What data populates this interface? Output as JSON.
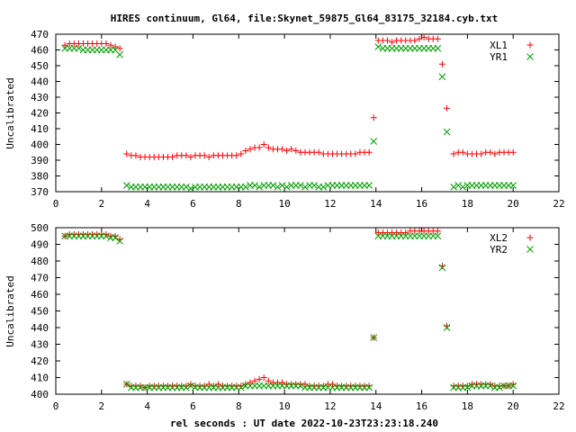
{
  "title": "HIRES continuum, Gl64, file:Skynet_59875_Gl64_83175_32184.cyb.txt",
  "xlabel": "rel seconds : UT date 2022-10-23T23:23:18.240",
  "colors": {
    "red": "#ff0000",
    "green": "#00a000",
    "axis": "#000000"
  },
  "chart_data": [
    {
      "type": "scatter",
      "ylabel": "Uncalibrated",
      "xlim": [
        0,
        22
      ],
      "ylim": [
        370,
        470
      ],
      "xticks": [
        0,
        2,
        4,
        6,
        8,
        10,
        12,
        14,
        16,
        18,
        20,
        22
      ],
      "yticks": [
        370,
        380,
        390,
        400,
        410,
        420,
        430,
        440,
        450,
        460,
        470
      ],
      "legend": "top-right",
      "grid": false,
      "series": [
        {
          "name": "XL1",
          "marker": "plus",
          "color": "#ff0000",
          "x": [
            0.4,
            0.6,
            0.8,
            1.0,
            1.2,
            1.4,
            1.6,
            1.8,
            2.0,
            2.2,
            2.4,
            2.6,
            2.8,
            3.1,
            3.3,
            3.5,
            3.7,
            3.9,
            4.1,
            4.3,
            4.5,
            4.7,
            4.9,
            5.1,
            5.3,
            5.5,
            5.7,
            5.9,
            6.1,
            6.3,
            6.5,
            6.7,
            6.9,
            7.1,
            7.3,
            7.5,
            7.7,
            7.9,
            8.1,
            8.3,
            8.5,
            8.7,
            8.9,
            9.1,
            9.3,
            9.5,
            9.7,
            9.9,
            10.1,
            10.3,
            10.5,
            10.7,
            10.9,
            11.1,
            11.3,
            11.5,
            11.7,
            11.9,
            12.1,
            12.3,
            12.5,
            12.7,
            12.9,
            13.1,
            13.3,
            13.5,
            13.7,
            13.9,
            14.1,
            14.3,
            14.5,
            14.7,
            14.9,
            15.1,
            15.3,
            15.5,
            15.7,
            15.9,
            16.1,
            16.3,
            16.5,
            16.7,
            16.9,
            17.1,
            17.4,
            17.6,
            17.8,
            18.0,
            18.2,
            18.4,
            18.6,
            18.8,
            19.0,
            19.2,
            19.4,
            19.6,
            19.8,
            20.0
          ],
          "y": [
            463,
            464,
            464,
            464,
            464,
            464,
            464,
            464,
            464,
            464,
            463,
            462,
            461,
            394,
            393,
            393,
            392,
            392,
            392,
            392,
            392,
            392,
            392,
            392,
            393,
            393,
            393,
            392,
            393,
            393,
            393,
            392,
            393,
            393,
            393,
            393,
            393,
            393,
            394,
            396,
            397,
            398,
            398,
            400,
            398,
            397,
            397,
            397,
            396,
            397,
            396,
            395,
            395,
            395,
            395,
            395,
            394,
            394,
            394,
            394,
            394,
            394,
            394,
            394,
            395,
            395,
            395,
            417,
            466,
            466,
            466,
            465,
            466,
            466,
            466,
            466,
            466,
            467,
            468,
            467,
            467,
            467,
            451,
            423,
            394,
            395,
            395,
            394,
            394,
            394,
            394,
            395,
            395,
            394,
            395,
            395,
            395,
            395
          ]
        },
        {
          "name": "YR1",
          "marker": "cross",
          "color": "#00a000",
          "x": [
            0.4,
            0.6,
            0.8,
            1.0,
            1.2,
            1.4,
            1.6,
            1.8,
            2.0,
            2.2,
            2.4,
            2.6,
            2.8,
            3.1,
            3.3,
            3.5,
            3.7,
            3.9,
            4.1,
            4.3,
            4.5,
            4.7,
            4.9,
            5.1,
            5.3,
            5.5,
            5.7,
            5.9,
            6.1,
            6.3,
            6.5,
            6.7,
            6.9,
            7.1,
            7.3,
            7.5,
            7.7,
            7.9,
            8.1,
            8.3,
            8.5,
            8.7,
            8.9,
            9.1,
            9.3,
            9.5,
            9.7,
            9.9,
            10.1,
            10.3,
            10.5,
            10.7,
            10.9,
            11.1,
            11.3,
            11.5,
            11.7,
            11.9,
            12.1,
            12.3,
            12.5,
            12.7,
            12.9,
            13.1,
            13.3,
            13.5,
            13.7,
            13.9,
            14.1,
            14.3,
            14.5,
            14.7,
            14.9,
            15.1,
            15.3,
            15.5,
            15.7,
            15.9,
            16.1,
            16.3,
            16.5,
            16.7,
            16.9,
            17.1,
            17.4,
            17.6,
            17.8,
            18.0,
            18.2,
            18.4,
            18.6,
            18.8,
            19.0,
            19.2,
            19.4,
            19.6,
            19.8,
            20.0
          ],
          "y": [
            461,
            461,
            461,
            461,
            460,
            460,
            460,
            460,
            460,
            460,
            460,
            460,
            457,
            374,
            373,
            373,
            373,
            373,
            373,
            373,
            373,
            373,
            373,
            373,
            373,
            373,
            373,
            372,
            373,
            373,
            373,
            373,
            373,
            373,
            373,
            373,
            373,
            373,
            373,
            373,
            374,
            374,
            373,
            374,
            374,
            374,
            373,
            374,
            373,
            374,
            374,
            374,
            373,
            374,
            374,
            373,
            373,
            374,
            374,
            374,
            374,
            374,
            374,
            374,
            374,
            374,
            374,
            402,
            462,
            461,
            461,
            461,
            461,
            461,
            461,
            461,
            461,
            461,
            461,
            461,
            461,
            461,
            443,
            408,
            373,
            374,
            373,
            374,
            374,
            374,
            374,
            374,
            374,
            374,
            374,
            374,
            374,
            374
          ]
        }
      ]
    },
    {
      "type": "scatter",
      "ylabel": "Uncalibrated",
      "xlim": [
        0,
        22
      ],
      "ylim": [
        400,
        500
      ],
      "xticks": [
        0,
        2,
        4,
        6,
        8,
        10,
        12,
        14,
        16,
        18,
        20,
        22
      ],
      "yticks": [
        400,
        410,
        420,
        430,
        440,
        450,
        460,
        470,
        480,
        490,
        500
      ],
      "legend": "top-right",
      "grid": false,
      "series": [
        {
          "name": "XL2",
          "marker": "plus",
          "color": "#ff0000",
          "x": [
            0.4,
            0.6,
            0.8,
            1.0,
            1.2,
            1.4,
            1.6,
            1.8,
            2.0,
            2.2,
            2.4,
            2.6,
            2.8,
            3.1,
            3.3,
            3.5,
            3.7,
            3.9,
            4.1,
            4.3,
            4.5,
            4.7,
            4.9,
            5.1,
            5.3,
            5.5,
            5.7,
            5.9,
            6.1,
            6.3,
            6.5,
            6.7,
            6.9,
            7.1,
            7.3,
            7.5,
            7.7,
            7.9,
            8.1,
            8.3,
            8.5,
            8.7,
            8.9,
            9.1,
            9.3,
            9.5,
            9.7,
            9.9,
            10.1,
            10.3,
            10.5,
            10.7,
            10.9,
            11.1,
            11.3,
            11.5,
            11.7,
            11.9,
            12.1,
            12.3,
            12.5,
            12.7,
            12.9,
            13.1,
            13.3,
            13.5,
            13.7,
            13.9,
            14.1,
            14.3,
            14.5,
            14.7,
            14.9,
            15.1,
            15.3,
            15.5,
            15.7,
            15.9,
            16.1,
            16.3,
            16.5,
            16.7,
            16.9,
            17.1,
            17.4,
            17.6,
            17.8,
            18.0,
            18.2,
            18.4,
            18.6,
            18.8,
            19.0,
            19.2,
            19.4,
            19.6,
            19.8,
            20.0
          ],
          "y": [
            495,
            496,
            496,
            496,
            496,
            496,
            496,
            496,
            496,
            496,
            495,
            495,
            493,
            406,
            405,
            405,
            405,
            404,
            405,
            405,
            405,
            405,
            405,
            405,
            405,
            405,
            405,
            406,
            405,
            405,
            405,
            406,
            405,
            406,
            405,
            405,
            405,
            405,
            405,
            406,
            407,
            408,
            409,
            410,
            408,
            407,
            407,
            407,
            406,
            406,
            406,
            406,
            406,
            405,
            405,
            405,
            405,
            406,
            406,
            405,
            405,
            405,
            405,
            405,
            405,
            405,
            405,
            434,
            497,
            497,
            497,
            497,
            497,
            497,
            497,
            498,
            498,
            498,
            498,
            498,
            498,
            498,
            477,
            441,
            405,
            405,
            405,
            405,
            406,
            406,
            406,
            406,
            406,
            405,
            405,
            405,
            405,
            406
          ]
        },
        {
          "name": "YR2",
          "marker": "cross",
          "color": "#00a000",
          "x": [
            0.4,
            0.6,
            0.8,
            1.0,
            1.2,
            1.4,
            1.6,
            1.8,
            2.0,
            2.2,
            2.4,
            2.6,
            2.8,
            3.1,
            3.3,
            3.5,
            3.7,
            3.9,
            4.1,
            4.3,
            4.5,
            4.7,
            4.9,
            5.1,
            5.3,
            5.5,
            5.7,
            5.9,
            6.1,
            6.3,
            6.5,
            6.7,
            6.9,
            7.1,
            7.3,
            7.5,
            7.7,
            7.9,
            8.1,
            8.3,
            8.5,
            8.7,
            8.9,
            9.1,
            9.3,
            9.5,
            9.7,
            9.9,
            10.1,
            10.3,
            10.5,
            10.7,
            10.9,
            11.1,
            11.3,
            11.5,
            11.7,
            11.9,
            12.1,
            12.3,
            12.5,
            12.7,
            12.9,
            13.1,
            13.3,
            13.5,
            13.7,
            13.9,
            14.1,
            14.3,
            14.5,
            14.7,
            14.9,
            15.1,
            15.3,
            15.5,
            15.7,
            15.9,
            16.1,
            16.3,
            16.5,
            16.7,
            16.9,
            17.1,
            17.4,
            17.6,
            17.8,
            18.0,
            18.2,
            18.4,
            18.6,
            18.8,
            19.0,
            19.2,
            19.4,
            19.6,
            19.8,
            20.0
          ],
          "y": [
            495,
            495,
            495,
            495,
            495,
            495,
            495,
            495,
            495,
            495,
            494,
            494,
            492,
            406,
            404,
            404,
            404,
            404,
            404,
            404,
            404,
            404,
            404,
            404,
            404,
            404,
            404,
            405,
            404,
            404,
            404,
            404,
            404,
            404,
            404,
            404,
            404,
            404,
            404,
            405,
            405,
            405,
            405,
            405,
            405,
            405,
            405,
            405,
            405,
            405,
            405,
            405,
            404,
            404,
            404,
            404,
            404,
            404,
            404,
            404,
            404,
            404,
            404,
            404,
            404,
            404,
            404,
            434,
            495,
            495,
            495,
            495,
            495,
            495,
            495,
            495,
            495,
            495,
            495,
            495,
            495,
            495,
            476,
            440,
            404,
            404,
            404,
            404,
            405,
            405,
            405,
            405,
            405,
            404,
            404,
            405,
            405,
            405
          ]
        }
      ]
    }
  ]
}
